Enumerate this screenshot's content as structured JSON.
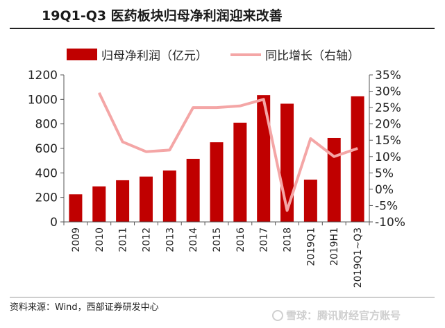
{
  "title": "19Q1-Q3 医药板块归母净利润迎来改善",
  "source": "资料来源：Wind，西部证券研发中心",
  "watermark": "雪球：腾讯财经官方账号",
  "colors": {
    "bar": "#c00000",
    "line": "#f4a6a6",
    "axis": "#555555"
  },
  "chart_data": {
    "type": "bar",
    "categories": [
      "2009",
      "2010",
      "2011",
      "2012",
      "2013",
      "2014",
      "2015",
      "2016",
      "2017",
      "2018",
      "2019Q1",
      "2019H1",
      "2019Q1~Q3"
    ],
    "series": [
      {
        "name": "归母净利润（亿元）",
        "type": "bar",
        "axis": "left",
        "values": [
          225,
          290,
          340,
          370,
          420,
          515,
          650,
          810,
          1035,
          965,
          345,
          685,
          1025
        ]
      },
      {
        "name": "同比增长（右轴）",
        "type": "line",
        "axis": "right",
        "values": [
          null,
          29.5,
          14.5,
          11.5,
          12.0,
          25.0,
          25.0,
          25.5,
          27.5,
          -6.5,
          15.5,
          10.0,
          12.5
        ]
      }
    ],
    "ylim": [
      0,
      1200
    ],
    "y2lim": [
      -10,
      35
    ],
    "yticks": [
      "0",
      "200",
      "400",
      "600",
      "800",
      "1000",
      "1200"
    ],
    "y2ticks": [
      "-10%",
      "-5%",
      "0%",
      "5%",
      "10%",
      "15%",
      "20%",
      "25%",
      "30%",
      "35%"
    ],
    "legend_position": "top",
    "grid": false
  }
}
